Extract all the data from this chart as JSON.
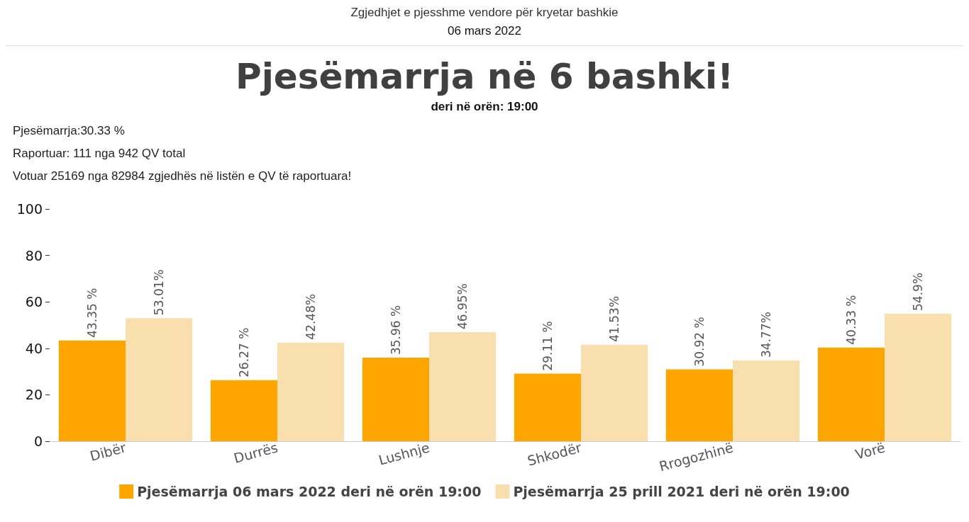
{
  "chart_data": {
    "type": "bar",
    "title": "Pjesëmarrja në 6 bashki!",
    "subtitle": "deri në orën: 19:00",
    "annotations": [
      "Zgjedhjet e pjesshme vendore për kryetar bashkie",
      "06 mars 2022",
      "Pjesëmarrja:30.33 %",
      "Raportuar: 111 nga 942 QV total",
      "Votuar 25169 nga 82984 zgjedhës në listën e QV të raportuara!"
    ],
    "categories": [
      "Dibër",
      "Durrës",
      "Lushnje",
      "Shkodër",
      "Rrogozhinë",
      "Vorë"
    ],
    "series": [
      {
        "name": "Pjesëmarrja 06 mars 2022 deri në orën 19:00",
        "color": "#ffa500",
        "values": [
          43.35,
          26.27,
          35.96,
          29.11,
          30.92,
          40.33
        ],
        "value_labels": [
          "43.35 %",
          "26.27 %",
          "35.96 %",
          "29.11 %",
          "30.92 %",
          "40.33 %"
        ]
      },
      {
        "name": "Pjesëmarrja 25 prill 2021 deri në orën 19:00",
        "color": "#f9dfad",
        "values": [
          53.01,
          42.48,
          46.95,
          41.53,
          34.77,
          54.9
        ],
        "value_labels": [
          "53.01%",
          "42.48%",
          "46.95%",
          "41.53%",
          "34.77%",
          "54.9%"
        ]
      }
    ],
    "ylim": [
      0,
      100
    ],
    "yticks": [
      0,
      20,
      40,
      60,
      80,
      100
    ],
    "grid": false,
    "legend": "bottom"
  }
}
